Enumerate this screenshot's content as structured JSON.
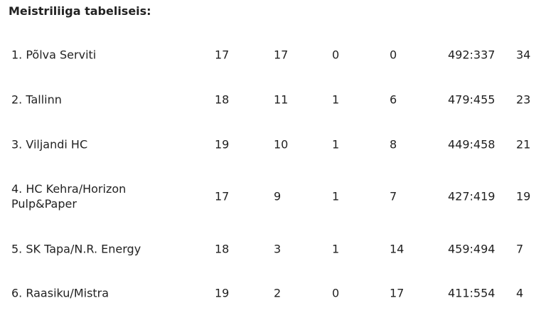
{
  "header": {
    "title": "Meistriliiga tabeliseis:"
  },
  "table": {
    "rows": [
      [
        "1. Põlva Serviti",
        17,
        17,
        0,
        0,
        "492:337",
        34
      ],
      [
        "2. Tallinn",
        18,
        11,
        1,
        6,
        "479:455",
        23
      ],
      [
        "3. Viljandi HC",
        19,
        10,
        1,
        8,
        "449:458",
        21
      ],
      [
        "4. HC Kehra/Horizon Pulp&Paper",
        17,
        9,
        1,
        7,
        "427:419",
        19
      ],
      [
        "5. SK Tapa/N.R. Energy",
        18,
        3,
        1,
        14,
        "459:494",
        7
      ],
      [
        "6. Raasiku/Mistra",
        19,
        2,
        0,
        17,
        "411:554",
        4
      ]
    ]
  }
}
